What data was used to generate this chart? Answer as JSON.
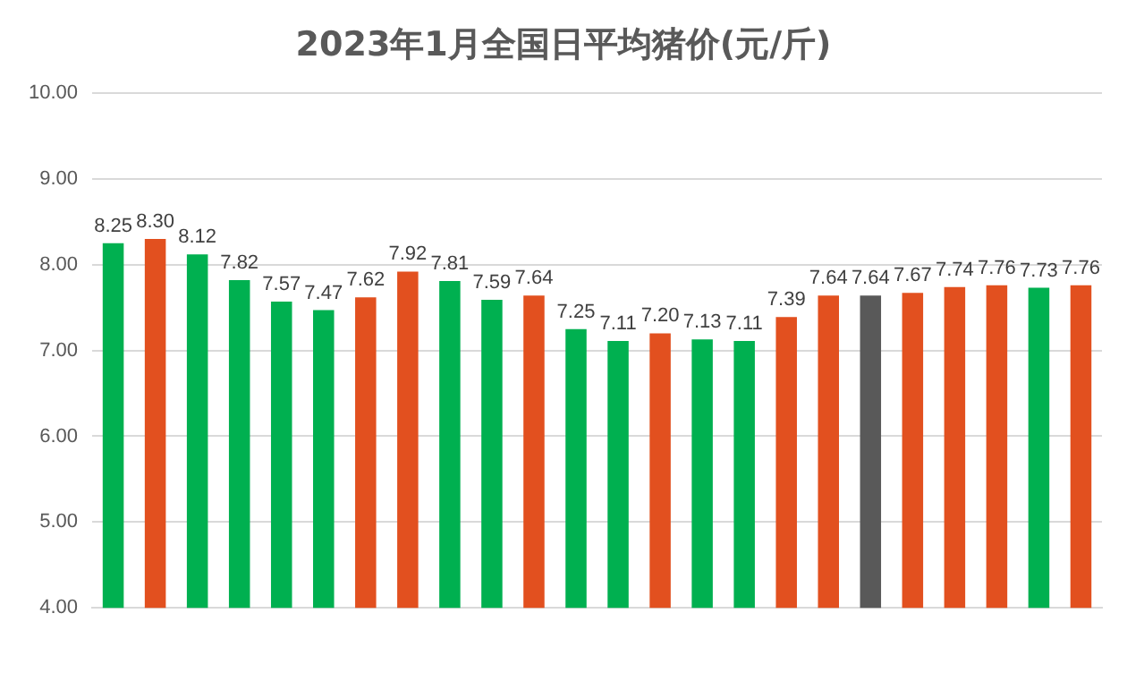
{
  "chart_data": {
    "type": "bar",
    "title": "2023年1月全国日平均猪价(元/斤)",
    "categories": [
      null,
      null,
      null,
      null,
      null,
      null,
      null,
      null,
      null,
      null,
      null,
      null,
      null,
      null,
      null,
      null,
      null,
      null,
      null,
      null,
      null,
      null,
      null,
      null
    ],
    "values": [
      8.25,
      8.3,
      8.12,
      7.82,
      7.57,
      7.47,
      7.62,
      7.92,
      7.81,
      7.59,
      7.64,
      7.25,
      7.11,
      7.2,
      7.13,
      7.11,
      7.39,
      7.64,
      7.64,
      7.67,
      7.74,
      7.76,
      7.73,
      7.76
    ],
    "value_labels": [
      "8.25",
      "8.30",
      "8.12",
      "7.82",
      "7.57",
      "7.47",
      "7.62",
      "7.92",
      "7.81",
      "7.59",
      "7.64",
      "7.25",
      "7.11",
      "7.20",
      "7.13",
      "7.11",
      "7.39",
      "7.64",
      "7.64",
      "7.67",
      "7.74",
      "7.76",
      "7.73",
      "7.76"
    ],
    "colors": [
      "#00b050",
      "#e2501f",
      "#00b050",
      "#00b050",
      "#00b050",
      "#00b050",
      "#e2501f",
      "#e2501f",
      "#00b050",
      "#00b050",
      "#e2501f",
      "#00b050",
      "#00b050",
      "#e2501f",
      "#00b050",
      "#00b050",
      "#e2501f",
      "#e2501f",
      "#595959",
      "#e2501f",
      "#e2501f",
      "#e2501f",
      "#00b050",
      "#e2501f"
    ],
    "ylim": [
      4,
      10
    ],
    "yticks": [
      {
        "value": 4,
        "label": "4.00"
      },
      {
        "value": 5,
        "label": "5.00"
      },
      {
        "value": 6,
        "label": "6.00"
      },
      {
        "value": 7,
        "label": "7.00"
      },
      {
        "value": 8,
        "label": "8.00"
      },
      {
        "value": 9,
        "label": "9.00"
      },
      {
        "value": 10,
        "label": "10.00"
      }
    ],
    "grid": "y",
    "legend": false
  }
}
